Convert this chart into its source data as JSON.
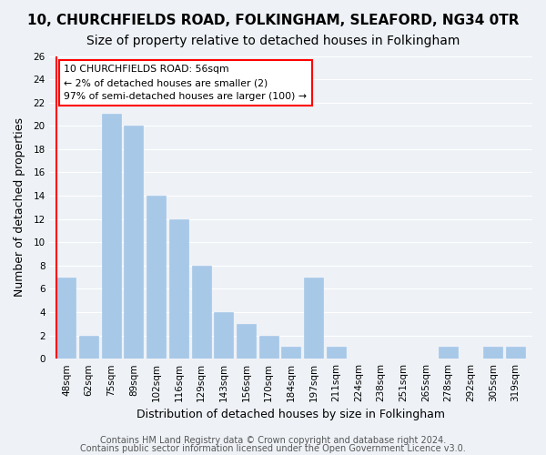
{
  "title1": "10, CHURCHFIELDS ROAD, FOLKINGHAM, SLEAFORD, NG34 0TR",
  "title2": "Size of property relative to detached houses in Folkingham",
  "xlabel": "Distribution of detached houses by size in Folkingham",
  "ylabel": "Number of detached properties",
  "categories": [
    "48sqm",
    "62sqm",
    "75sqm",
    "89sqm",
    "102sqm",
    "116sqm",
    "129sqm",
    "143sqm",
    "156sqm",
    "170sqm",
    "184sqm",
    "197sqm",
    "211sqm",
    "224sqm",
    "238sqm",
    "251sqm",
    "265sqm",
    "278sqm",
    "292sqm",
    "305sqm",
    "319sqm"
  ],
  "values": [
    7,
    2,
    21,
    20,
    14,
    12,
    8,
    4,
    3,
    2,
    1,
    7,
    1,
    0,
    0,
    0,
    0,
    1,
    0,
    1,
    1
  ],
  "bar_color": "#a8c8e8",
  "annotation_line1": "10 CHURCHFIELDS ROAD: 56sqm",
  "annotation_line2": "← 2% of detached houses are smaller (2)",
  "annotation_line3": "97% of semi-detached houses are larger (100) →",
  "ylim": [
    0,
    26
  ],
  "yticks": [
    0,
    2,
    4,
    6,
    8,
    10,
    12,
    14,
    16,
    18,
    20,
    22,
    24,
    26
  ],
  "footer1": "Contains HM Land Registry data © Crown copyright and database right 2024.",
  "footer2": "Contains public sector information licensed under the Open Government Licence v3.0.",
  "bg_color": "#eef2f7",
  "plot_bg_color": "#eef2f7",
  "grid_color": "#ffffff",
  "title1_fontsize": 11,
  "title2_fontsize": 10,
  "xlabel_fontsize": 9,
  "ylabel_fontsize": 9,
  "tick_fontsize": 7.5,
  "footer_fontsize": 7
}
